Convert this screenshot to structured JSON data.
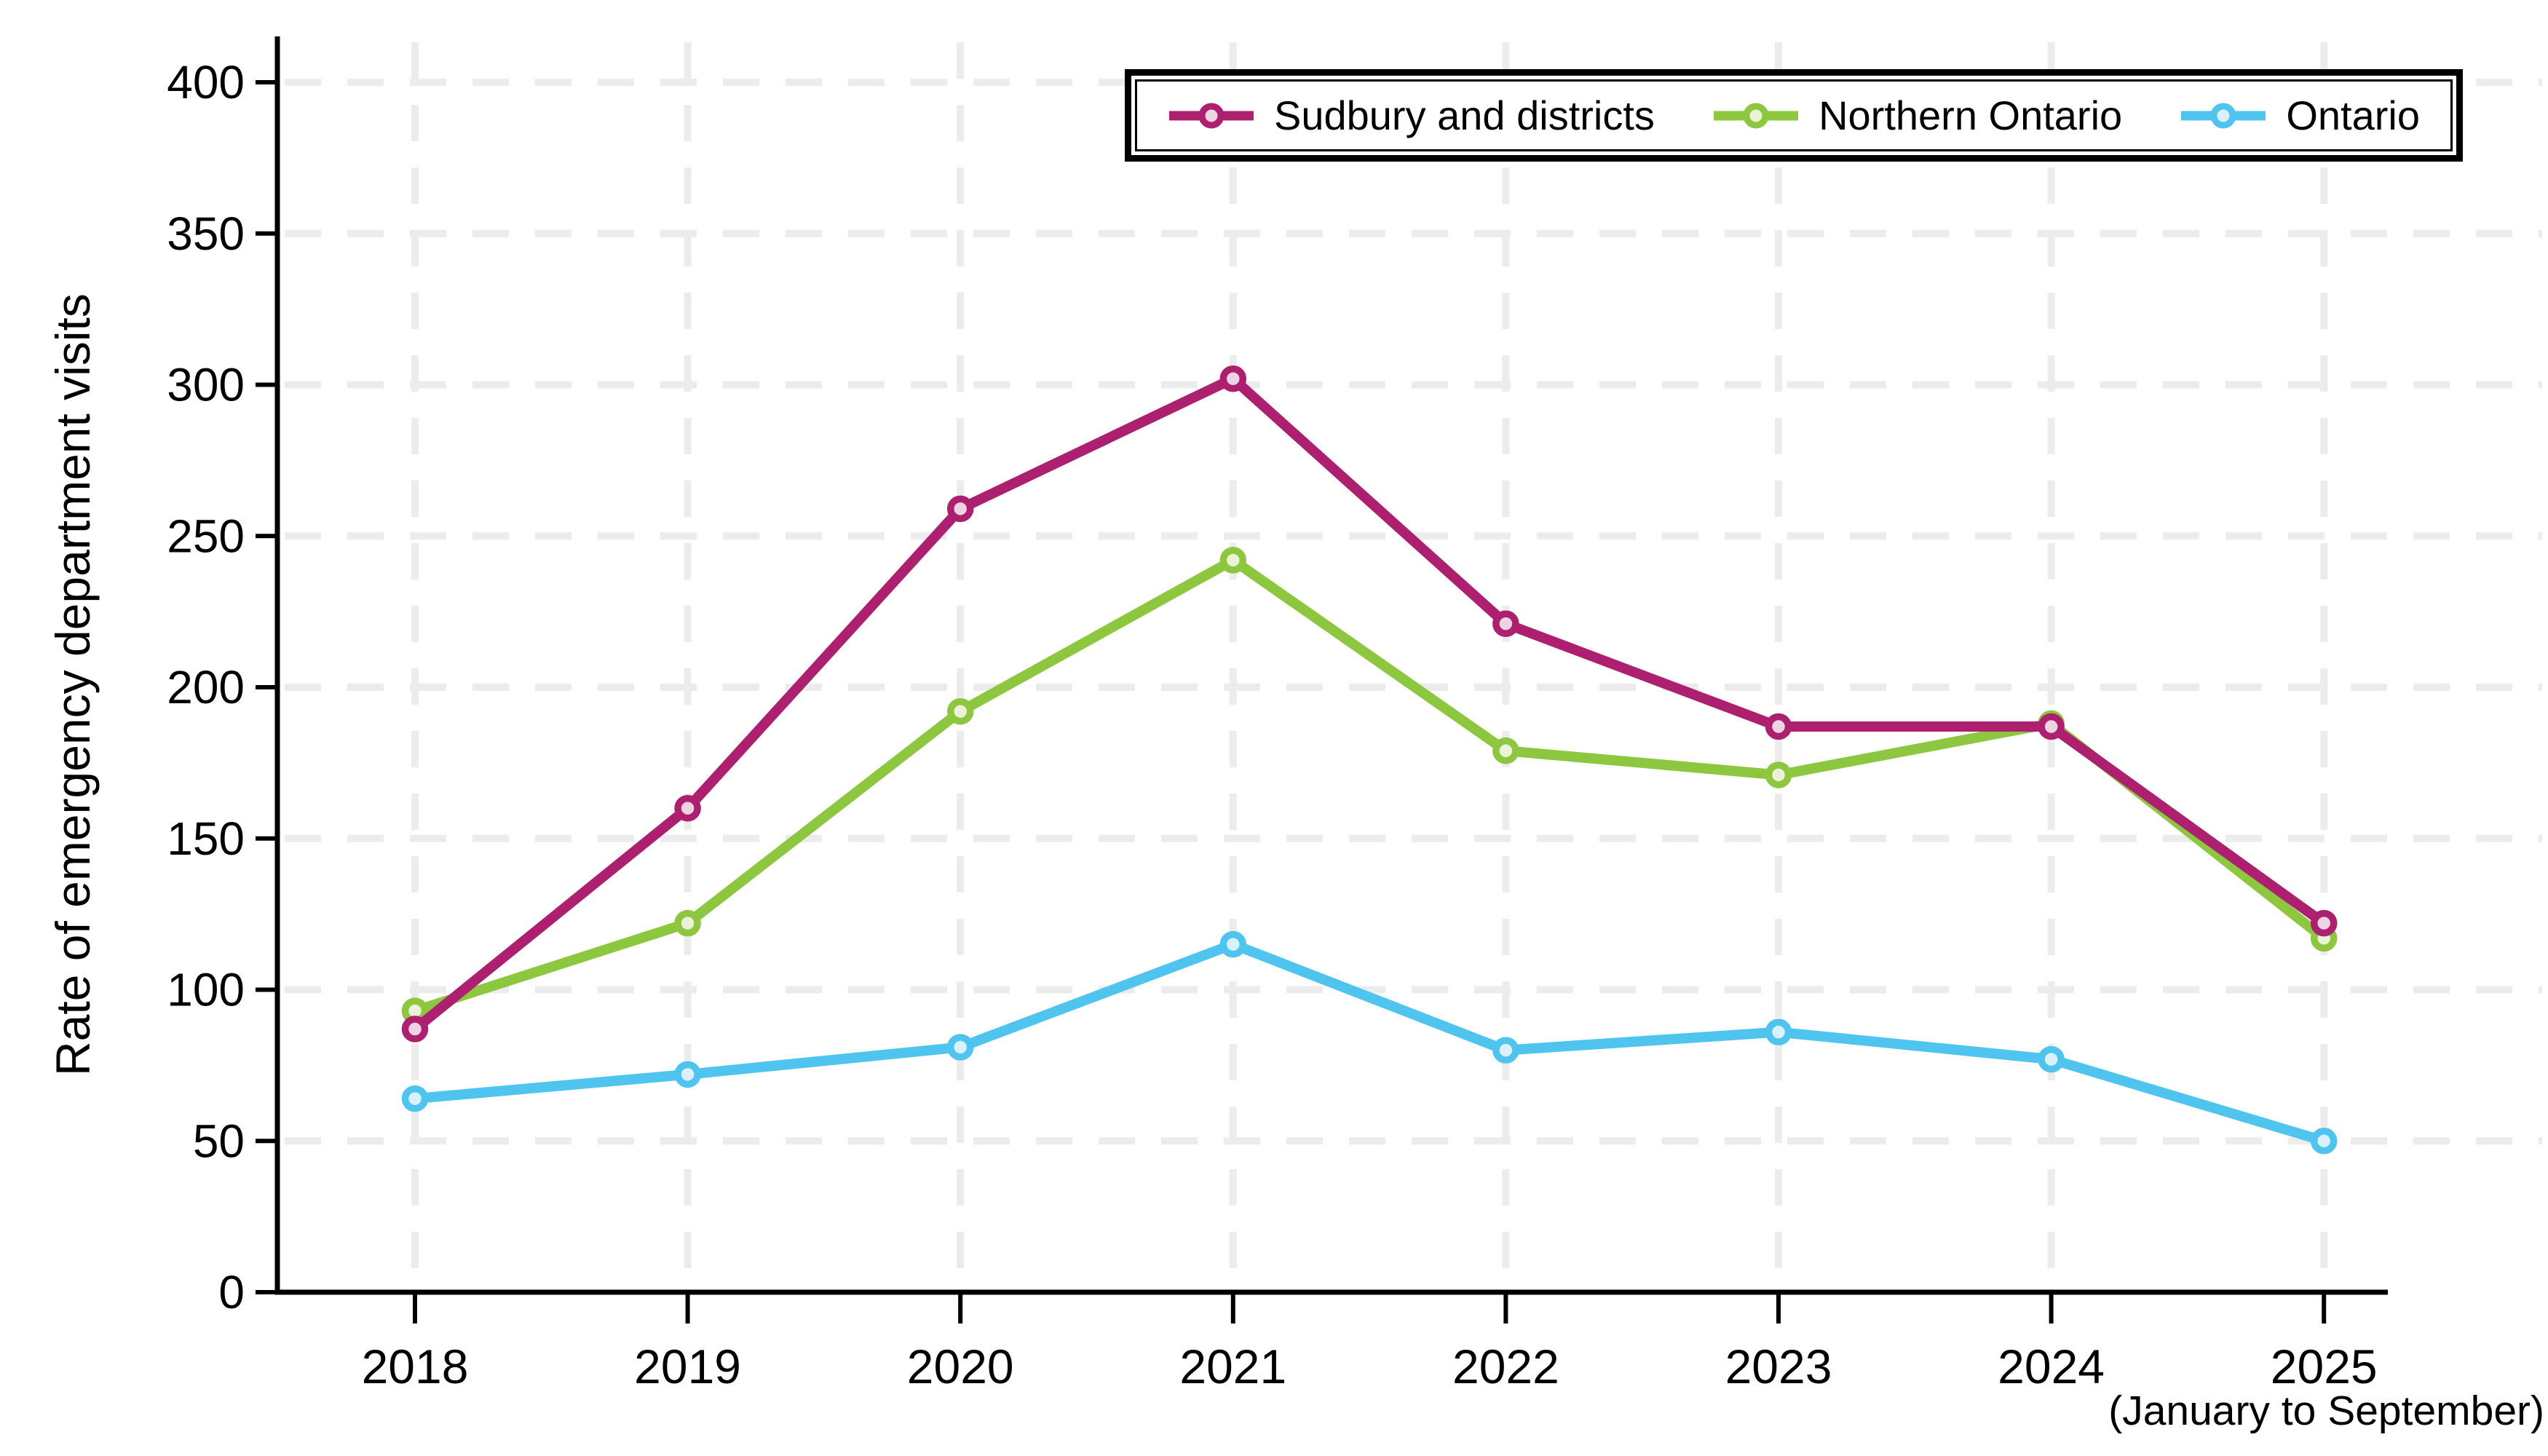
{
  "chart_data": {
    "type": "line",
    "title": "",
    "ylabel": "Rate of emergency department visits",
    "xlabel": "",
    "x_axis_note": "(January to September)",
    "categories": [
      "2018",
      "2019",
      "2020",
      "2021",
      "2022",
      "2023",
      "2024",
      "2025"
    ],
    "series": [
      {
        "name": "Sudbury and districts",
        "color": "#ad1f6f",
        "marker_fill": "#edd3e4",
        "values": [
          87,
          160,
          259,
          302,
          221,
          187,
          187,
          122
        ]
      },
      {
        "name": "Northern Ontario",
        "color": "#8dc63f",
        "marker_fill": "#ebf3d6",
        "values": [
          93,
          122,
          192,
          242,
          179,
          171,
          188,
          117
        ]
      },
      {
        "name": "Ontario",
        "color": "#4fc4ee",
        "marker_fill": "#d9f1fc",
        "values": [
          64,
          72,
          81,
          115,
          80,
          86,
          77,
          50
        ]
      }
    ],
    "ylim": [
      0,
      400
    ],
    "ytick_step": 50,
    "yticks": [
      "0",
      "50",
      "100",
      "150",
      "200",
      "250",
      "300",
      "350",
      "400"
    ],
    "grid": true,
    "grid_color": "#ececec",
    "axis_color": "#000000",
    "background_color": "#ffffff",
    "legend_position": "top-right"
  }
}
